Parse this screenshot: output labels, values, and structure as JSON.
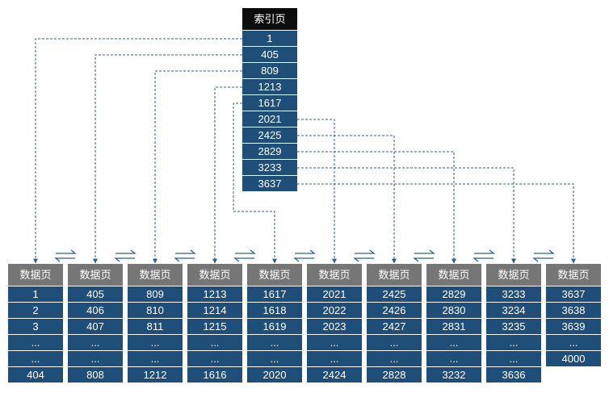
{
  "index_page": {
    "title": "索引页",
    "entries": [
      "1",
      "405",
      "809",
      "1213",
      "1617",
      "2021",
      "2425",
      "2829",
      "3233",
      "3637"
    ]
  },
  "data_pages": [
    {
      "title": "数据页",
      "rows": [
        "1",
        "2",
        "3",
        "...",
        "...",
        "404"
      ]
    },
    {
      "title": "数据页",
      "rows": [
        "405",
        "406",
        "407",
        "...",
        "...",
        "808"
      ]
    },
    {
      "title": "数据页",
      "rows": [
        "809",
        "810",
        "811",
        "...",
        "...",
        "1212"
      ]
    },
    {
      "title": "数据页",
      "rows": [
        "1213",
        "1214",
        "1215",
        "...",
        "...",
        "1616"
      ]
    },
    {
      "title": "数据页",
      "rows": [
        "1617",
        "1618",
        "1619",
        "...",
        "...",
        "2020"
      ]
    },
    {
      "title": "数据页",
      "rows": [
        "2021",
        "2022",
        "2023",
        "...",
        "...",
        "2424"
      ]
    },
    {
      "title": "数据页",
      "rows": [
        "2425",
        "2426",
        "2427",
        "...",
        "...",
        "2828"
      ]
    },
    {
      "title": "数据页",
      "rows": [
        "2829",
        "2830",
        "2831",
        "...",
        "...",
        "3232"
      ]
    },
    {
      "title": "数据页",
      "rows": [
        "3233",
        "3234",
        "3235",
        "...",
        "...",
        "3636"
      ]
    },
    {
      "title": "数据页",
      "rows": [
        "3637",
        "3638",
        "3639",
        "...",
        "4000"
      ]
    }
  ],
  "colors": {
    "index_header_bg": "#0d0d0d",
    "data_header_bg": "#767676",
    "cell_bg": "#1f4e79",
    "cell_text": "#ffffff",
    "connector_line": "#2e5f8a"
  }
}
